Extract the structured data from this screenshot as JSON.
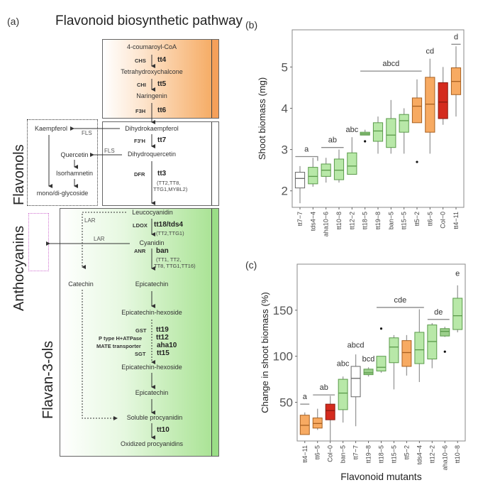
{
  "panel_a": {
    "label": "(a)",
    "title": "Flavonoid biosynthetic pathway",
    "side_labels": {
      "flavonols": "Flavonols",
      "anthocyanins": "Anthocyanins",
      "flavan3ols": "Flavan-3-ols"
    },
    "compounds": {
      "coumaroyl": "4-coumaroyl-CoA",
      "tetrahydroxychalcone": "Tetrahydroxychalcone",
      "naringenin": "Naringenin",
      "dihydrokaempferol": "Dihydrokaempferol",
      "dihydroquercetin": "Dihydroquercetin",
      "kaempferol": "Kaempferol",
      "quercetin": "Quercetin",
      "isorhamnetin": "Isorhamnetin",
      "glycoside": "mono/di-glycoside",
      "leucocyanidin": "Leucocyanidin",
      "cyanidin": "Cyanidin",
      "catechin": "Catechin",
      "epicatechin1": "Epicatechin",
      "epicatechin_hexoside1": "Epicatechin-hexoside",
      "epicatechin_hexoside2": "Epicatechin-hexoside",
      "epicatechin2": "Epicatechin",
      "soluble_procyanidin": "Soluble procyanidin",
      "oxidized_procyanidins": "Oxidized procyanidins"
    },
    "enzymes": {
      "chs": "CHS",
      "chi": "CHI",
      "f3h": "F3H",
      "f3h2": "F3'H",
      "dfr": "DFR",
      "fls1": "FLS",
      "fls2": "FLS",
      "ldox": "LDOX",
      "anr": "ANR",
      "lar1": "LAR",
      "lar2": "LAR",
      "gst": "GST",
      "ptype": "P type H+ATPase",
      "mate": "MATE transporter",
      "sgt": "SGT"
    },
    "genes": {
      "tt4": "tt4",
      "tt5": "tt5",
      "tt6": "tt6",
      "tt7": "tt7",
      "tt3": "tt3",
      "tt18": "tt18/tds4",
      "ban": "ban",
      "tt19": "tt19",
      "tt12": "tt12",
      "aha10": "aha10",
      "tt15": "tt15",
      "tt10": "tt10"
    },
    "regulators": {
      "tt3_a": "(TT2,TT8,",
      "tt3_b": "TTG1,MYBL2)",
      "tt18": "(TT2,TTG1)",
      "ban_a": "(TT1, TT2,",
      "ban_b": "TT8, TTG1,TT16)"
    }
  },
  "chart_data": [
    {
      "panel": "(b)",
      "type": "box",
      "title": "",
      "xlabel": "",
      "ylabel": "Shoot biomass (mg)",
      "ylim": [
        1.6,
        5.9
      ],
      "yticks": [
        2,
        3,
        4,
        5
      ],
      "categories": [
        "tt7−7",
        "tds4−4",
        "aha10−6",
        "tt10−8",
        "tt12−2",
        "tt18−5",
        "tt19−8",
        "ban−5",
        "tt15−5",
        "tt5−2",
        "tt6−5",
        "Col−0",
        "tt4−11"
      ],
      "colors": [
        "#ffffff",
        "#b8e8a8",
        "#b8e8a8",
        "#b8e8a8",
        "#b8e8a8",
        "#9ccf8c",
        "#b8e8a8",
        "#b8e8a8",
        "#b8e8a8",
        "#f7aa62",
        "#f7aa62",
        "#d42b1e",
        "#f7aa62"
      ],
      "boxes": [
        {
          "min": 1.7,
          "q1": 2.07,
          "median": 2.3,
          "q3": 2.45,
          "max": 2.6
        },
        {
          "min": 2.1,
          "q1": 2.17,
          "median": 2.35,
          "q3": 2.57,
          "max": 2.8
        },
        {
          "min": 2.2,
          "q1": 2.35,
          "median": 2.5,
          "q3": 2.65,
          "max": 2.8
        },
        {
          "min": 2.2,
          "q1": 2.27,
          "median": 2.5,
          "q3": 2.77,
          "max": 3.0
        },
        {
          "min": 2.4,
          "q1": 2.4,
          "median": 2.6,
          "q3": 2.92,
          "max": 3.3
        },
        {
          "min": 3.35,
          "q1": 3.35,
          "median": 3.38,
          "q3": 3.42,
          "max": 3.48,
          "outliers": [
            3.2
          ]
        },
        {
          "min": 2.9,
          "q1": 3.2,
          "median": 3.45,
          "q3": 3.65,
          "max": 3.8
        },
        {
          "min": 2.9,
          "q1": 3.05,
          "median": 3.35,
          "q3": 3.75,
          "max": 4.2
        },
        {
          "min": 2.9,
          "q1": 3.42,
          "median": 3.7,
          "q3": 3.85,
          "max": 4.0
        },
        {
          "min": 3.65,
          "q1": 3.65,
          "median": 4.05,
          "q3": 4.25,
          "max": 4.7,
          "outliers": [
            2.7
          ]
        },
        {
          "min": 2.9,
          "q1": 3.42,
          "median": 4.1,
          "q3": 4.75,
          "max": 5.2
        },
        {
          "min": 3.6,
          "q1": 3.75,
          "median": 4.15,
          "q3": 4.62,
          "max": 5.0
        },
        {
          "min": 3.8,
          "q1": 4.33,
          "median": 4.65,
          "q3": 4.98,
          "max": 5.5
        }
      ],
      "annotations": [
        {
          "text": "a",
          "from": 0,
          "to": 1,
          "y": 2.83
        },
        {
          "text": "ab",
          "from": 2,
          "to": 3,
          "y": 3.05
        },
        {
          "text": "abc",
          "from": 4,
          "to": 4,
          "y": 3.3
        },
        {
          "text": "abcd",
          "from": 5,
          "to": 9,
          "y": 4.9
        },
        {
          "text": "cd",
          "from": 10,
          "to": 10,
          "y": 5.2
        },
        {
          "text": "d",
          "from": 12,
          "to": 12,
          "y": 5.55
        }
      ],
      "grid": false
    },
    {
      "panel": "(c)",
      "type": "box",
      "title": "",
      "xlabel": "Flavonoid mutants",
      "ylabel": "Change in shoot biomass (%)",
      "ylim": [
        8,
        200
      ],
      "yticks": [
        50,
        100,
        150
      ],
      "categories": [
        "tt4−11",
        "tt6−5",
        "Col−0",
        "ban−5",
        "tt7−7",
        "tt19−8",
        "tt18−5",
        "tt15−5",
        "tt5−2",
        "tds4−4",
        "tt12−2",
        "aha10−6",
        "tt10−8"
      ],
      "colors": [
        "#f7aa62",
        "#f7aa62",
        "#d42b1e",
        "#b8e8a8",
        "#ffffff",
        "#9ccf8c",
        "#b8e8a8",
        "#b8e8a8",
        "#f7aa62",
        "#b8e8a8",
        "#b8e8a8",
        "#9ccf8c",
        "#b8e8a8"
      ],
      "boxes": [
        {
          "min": 15,
          "q1": 15,
          "median": 25,
          "q3": 36,
          "max": 39
        },
        {
          "min": 20,
          "q1": 22,
          "median": 27,
          "q3": 33,
          "max": 43
        },
        {
          "min": 8,
          "q1": 31,
          "median": 41,
          "q3": 48,
          "max": 57
        },
        {
          "min": 28,
          "q1": 42,
          "median": 60,
          "q3": 75,
          "max": 78
        },
        {
          "min": 24,
          "q1": 56,
          "median": 76,
          "q3": 89,
          "max": 102
        },
        {
          "min": 78,
          "q1": 80,
          "median": 82,
          "q3": 86,
          "max": 88
        },
        {
          "min": 82,
          "q1": 84,
          "median": 88,
          "q3": 100,
          "max": 100,
          "outliers": [
            130
          ]
        },
        {
          "min": 64,
          "q1": 93,
          "median": 110,
          "q3": 120,
          "max": 123
        },
        {
          "min": 79,
          "q1": 89,
          "median": 104,
          "q3": 117,
          "max": 123
        },
        {
          "min": 72,
          "q1": 92,
          "median": 107,
          "q3": 126,
          "max": 151
        },
        {
          "min": 87,
          "q1": 97,
          "median": 116,
          "q3": 134,
          "max": 136
        },
        {
          "min": 121,
          "q1": 122,
          "median": 127,
          "q3": 130,
          "max": 132,
          "outliers": [
            105
          ]
        },
        {
          "min": 126,
          "q1": 129,
          "median": 144,
          "q3": 163,
          "max": 177
        }
      ],
      "annotations": [
        {
          "text": "a",
          "from": 0,
          "to": 0,
          "y": 48
        },
        {
          "text": "ab",
          "from": 1,
          "to": 2,
          "y": 58
        },
        {
          "text": "abc",
          "from": 3,
          "to": 3,
          "y": 84
        },
        {
          "text": "abcd",
          "from": 4,
          "to": 4,
          "y": 104
        },
        {
          "text": "bcd",
          "from": 5,
          "to": 5,
          "y": 89
        },
        {
          "text": "cde",
          "from": 6,
          "to": 9,
          "y": 153
        },
        {
          "text": "de",
          "from": 10,
          "to": 11,
          "y": 140
        },
        {
          "text": "e",
          "from": 12,
          "to": 12,
          "y": 182
        }
      ],
      "grid": false
    }
  ]
}
